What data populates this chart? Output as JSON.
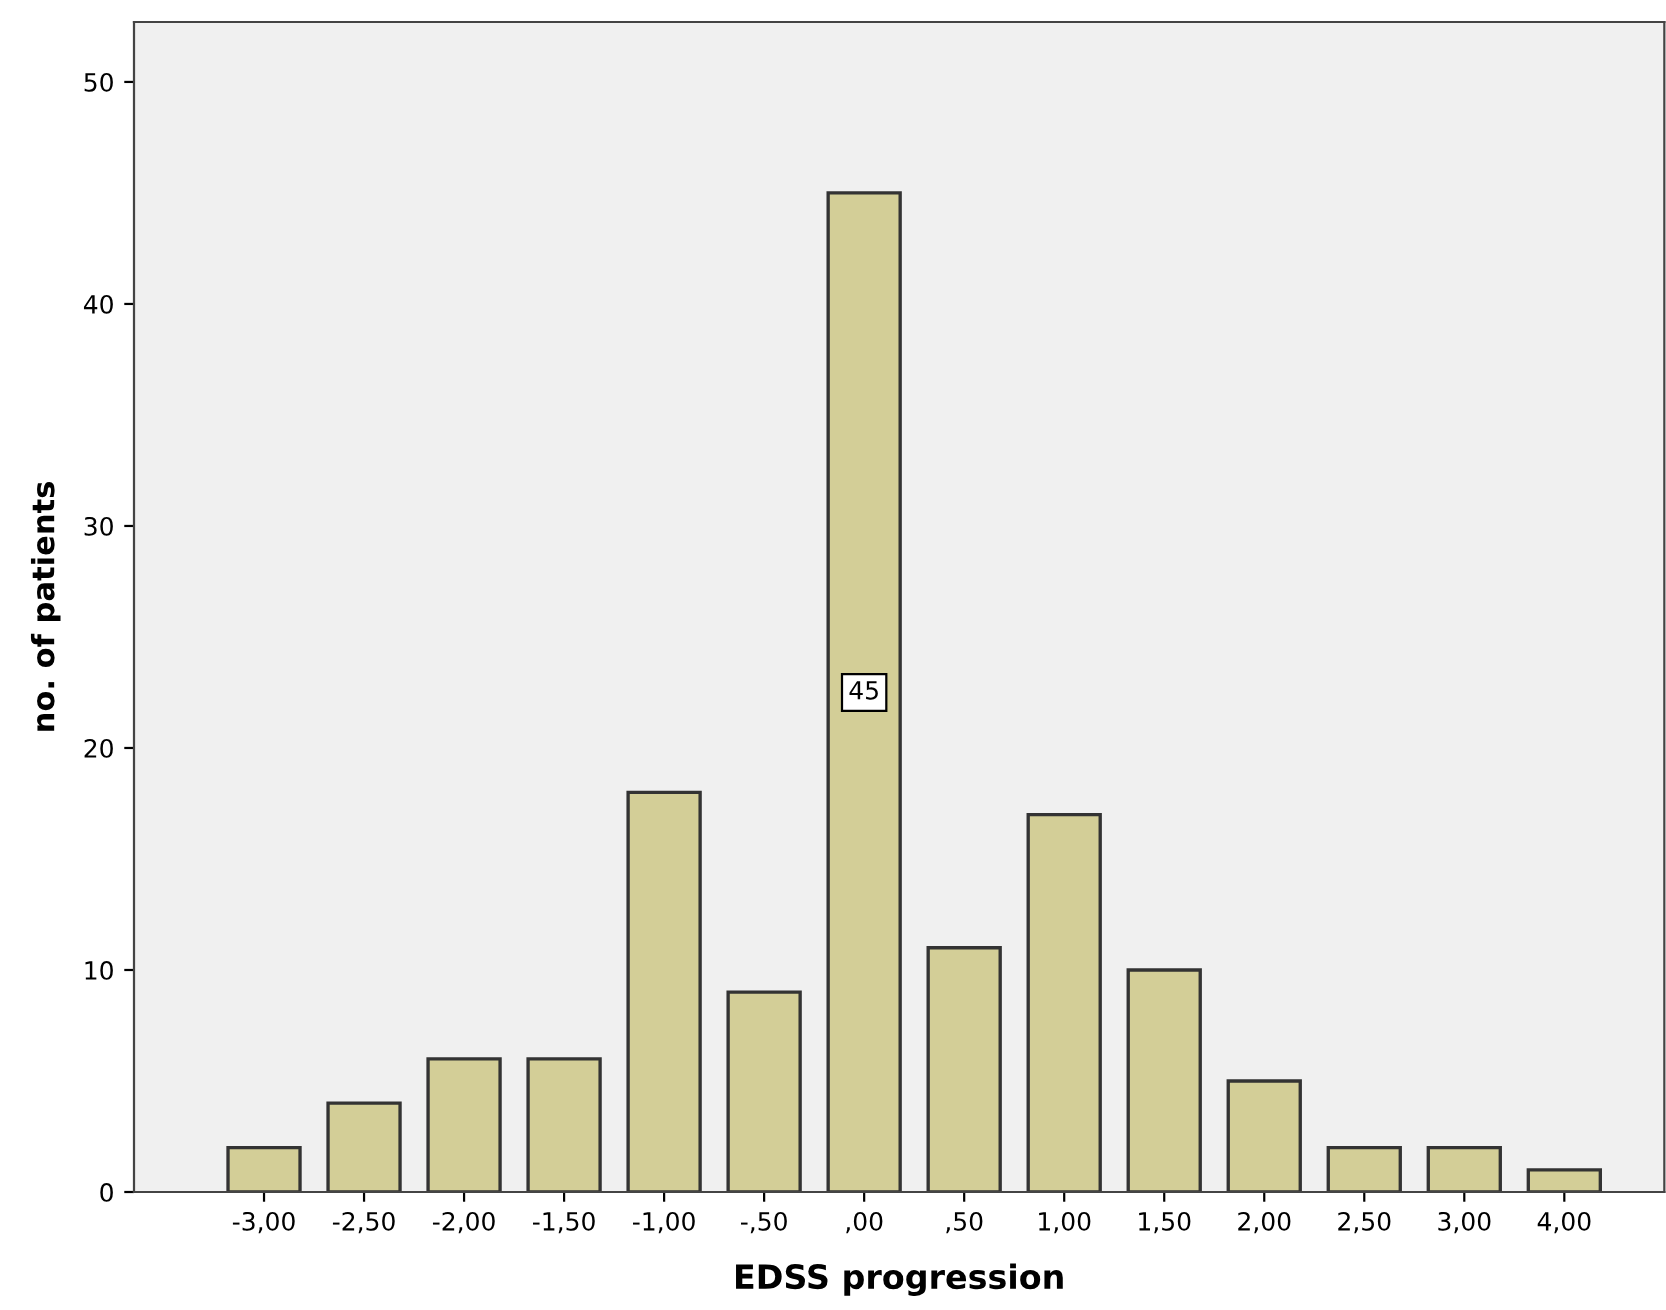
{
  "chart_data": {
    "type": "bar",
    "xlabel": "EDSS progression",
    "ylabel": "no. of patients",
    "categories": [
      "-3,00",
      "-2,50",
      "-2,00",
      "-1,50",
      "-1,00",
      "-,50",
      ",00",
      ",50",
      "1,00",
      "1,50",
      "2,00",
      "2,50",
      "3,00",
      "4,00"
    ],
    "values": [
      2,
      4,
      6,
      6,
      18,
      9,
      45,
      11,
      17,
      10,
      5,
      2,
      2,
      1
    ],
    "value_labels": [
      null,
      null,
      null,
      null,
      null,
      null,
      "45",
      null,
      null,
      null,
      null,
      null,
      null,
      null
    ],
    "color": "#d3ce97",
    "ylim": [
      0,
      52.7
    ],
    "yticks": [
      0,
      10,
      20,
      30,
      40,
      50
    ],
    "grid": false
  }
}
